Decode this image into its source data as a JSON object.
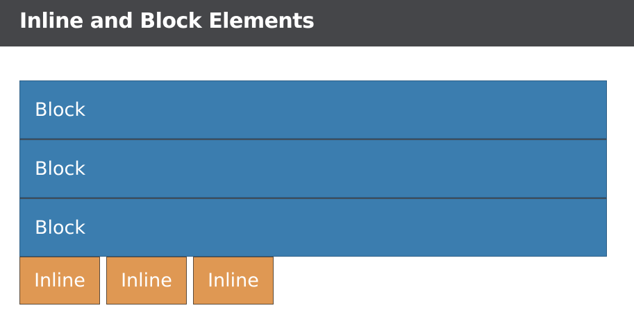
{
  "header": {
    "title": "Inline and Block Elements"
  },
  "blocks": [
    {
      "label": "Block"
    },
    {
      "label": "Block"
    },
    {
      "label": "Block"
    }
  ],
  "inlines": [
    {
      "label": "Inline"
    },
    {
      "label": "Inline"
    },
    {
      "label": "Inline"
    }
  ],
  "colors": {
    "header_bg": "#454649",
    "block_bg": "#3b7daf",
    "inline_bg": "#df9853",
    "text": "#ffffff"
  }
}
